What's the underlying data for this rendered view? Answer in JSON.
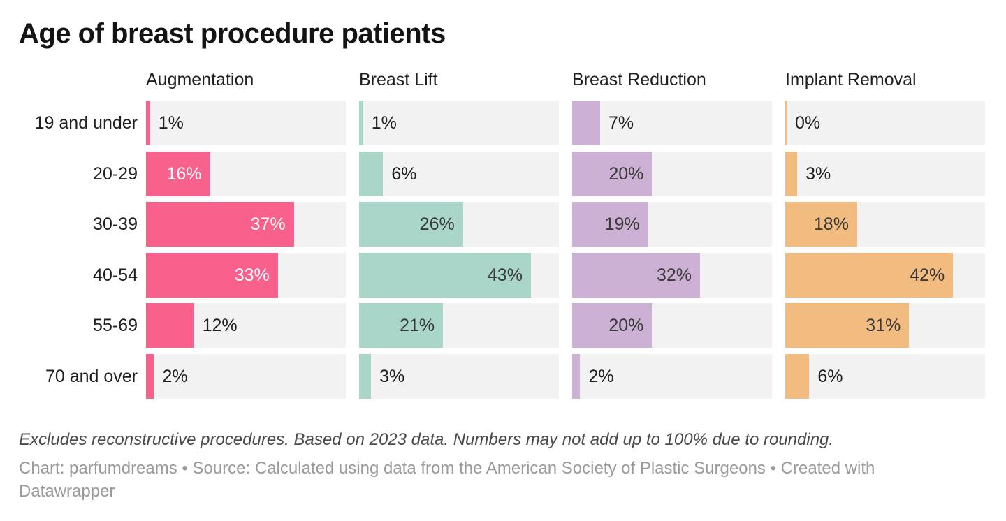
{
  "title": "Age of breast procedure patients",
  "chart_data": {
    "type": "bar",
    "layout": "small-multiples-horizontal-bars",
    "title": "Age of breast procedure patients",
    "categories": [
      "19 and under",
      "20-29",
      "30-39",
      "40-54",
      "55-69",
      "70 and over"
    ],
    "series": [
      {
        "name": "Augmentation",
        "color": "#f7618c",
        "label_color_inside": "#ffffff",
        "values": [
          1,
          16,
          37,
          33,
          12,
          2
        ]
      },
      {
        "name": "Breast Lift",
        "color": "#aad6ca",
        "label_color_inside": "#3a3a3a",
        "values": [
          1,
          6,
          26,
          43,
          21,
          3
        ]
      },
      {
        "name": "Breast Reduction",
        "color": "#ccb1d4",
        "label_color_inside": "#3a3a3a",
        "values": [
          7,
          20,
          19,
          32,
          20,
          2
        ]
      },
      {
        "name": "Implant Removal",
        "color": "#f2bc80",
        "label_color_inside": "#3a3a3a",
        "values": [
          0,
          3,
          18,
          42,
          31,
          6
        ]
      }
    ],
    "value_suffix": "%",
    "xlim": [
      0,
      50
    ],
    "grid": false,
    "legend_position": "column-headers",
    "track_color": "#f2f2f2",
    "outside_label_color": "#1f1f1f",
    "label_inside_threshold": 16
  },
  "footer": {
    "footnote": "Excludes reconstructive procedures. Based on 2023 data. Numbers may not add up to 100% due to rounding.",
    "byline": "Chart: parfumdreams • Source: Calculated using data from the American Society of Plastic Surgeons • Created with Datawrapper"
  }
}
